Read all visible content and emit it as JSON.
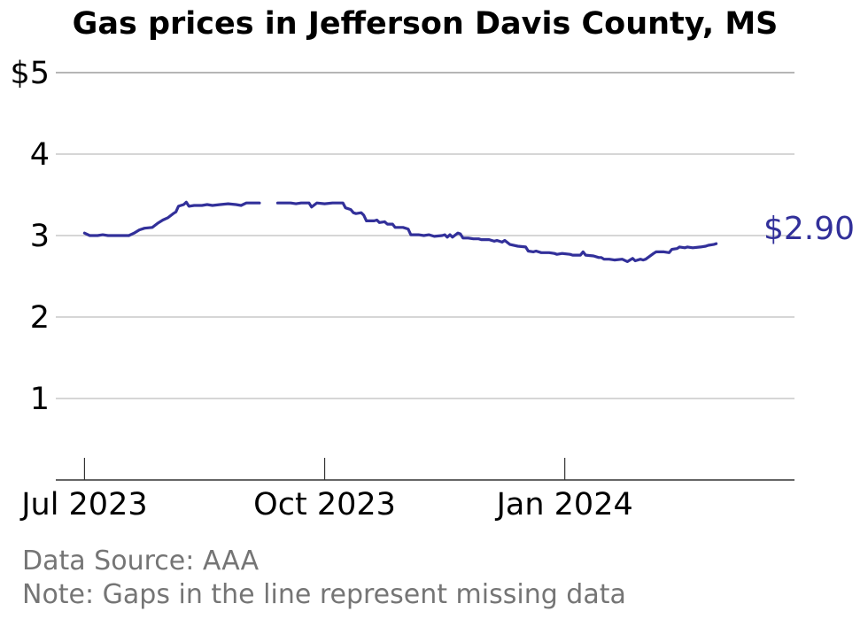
{
  "chart_data": {
    "type": "line",
    "title": "Gas prices in Jefferson Davis County, MS",
    "xlabel": "",
    "ylabel": "",
    "ylim": [
      0,
      5
    ],
    "yticks": [
      {
        "value": 1,
        "label": "1"
      },
      {
        "value": 2,
        "label": "2"
      },
      {
        "value": 3,
        "label": "3"
      },
      {
        "value": 4,
        "label": "4"
      },
      {
        "value": 5,
        "label": "$5"
      }
    ],
    "xticks": [
      {
        "date": "2023-07-01",
        "label": "Jul 2023"
      },
      {
        "date": "2023-10-01",
        "label": "Oct 2023"
      },
      {
        "date": "2024-01-01",
        "label": "Jan 2024"
      }
    ],
    "xlim": [
      "2023-06-20",
      "2024-03-29"
    ],
    "grid": true,
    "line_color": "#32309a",
    "end_label": "$2.90",
    "series": [
      {
        "segments": [
          [
            [
              "2023-07-01",
              3.03
            ],
            [
              "2023-07-03",
              3.0
            ],
            [
              "2023-07-06",
              3.0
            ],
            [
              "2023-07-08",
              3.01
            ],
            [
              "2023-07-10",
              3.0
            ],
            [
              "2023-07-15",
              3.0
            ],
            [
              "2023-07-18",
              3.0
            ],
            [
              "2023-07-20",
              3.03
            ],
            [
              "2023-07-22",
              3.07
            ],
            [
              "2023-07-24",
              3.09
            ],
            [
              "2023-07-27",
              3.1
            ],
            [
              "2023-07-29",
              3.15
            ],
            [
              "2023-07-31",
              3.19
            ],
            [
              "2023-08-02",
              3.22
            ],
            [
              "2023-08-04",
              3.27
            ],
            [
              "2023-08-05",
              3.29
            ],
            [
              "2023-08-06",
              3.36
            ],
            [
              "2023-08-08",
              3.38
            ],
            [
              "2023-08-09",
              3.41
            ],
            [
              "2023-08-10",
              3.36
            ],
            [
              "2023-08-12",
              3.37
            ],
            [
              "2023-08-15",
              3.37
            ],
            [
              "2023-08-17",
              3.38
            ],
            [
              "2023-08-19",
              3.37
            ],
            [
              "2023-08-22",
              3.38
            ],
            [
              "2023-08-25",
              3.39
            ],
            [
              "2023-08-28",
              3.38
            ],
            [
              "2023-08-30",
              3.37
            ],
            [
              "2023-09-01",
              3.4
            ],
            [
              "2023-09-04",
              3.4
            ],
            [
              "2023-09-06",
              3.4
            ]
          ],
          [
            [
              "2023-09-13",
              3.4
            ],
            [
              "2023-09-18",
              3.4
            ],
            [
              "2023-09-20",
              3.39
            ],
            [
              "2023-09-22",
              3.4
            ],
            [
              "2023-09-25",
              3.4
            ],
            [
              "2023-09-26",
              3.35
            ],
            [
              "2023-09-28",
              3.4
            ],
            [
              "2023-10-01",
              3.39
            ],
            [
              "2023-10-04",
              3.4
            ],
            [
              "2023-10-07",
              3.4
            ],
            [
              "2023-10-08",
              3.4
            ],
            [
              "2023-10-09",
              3.34
            ],
            [
              "2023-10-11",
              3.32
            ],
            [
              "2023-10-12",
              3.28
            ],
            [
              "2023-10-13",
              3.27
            ],
            [
              "2023-10-15",
              3.28
            ],
            [
              "2023-10-16",
              3.25
            ],
            [
              "2023-10-17",
              3.18
            ],
            [
              "2023-10-20",
              3.18
            ],
            [
              "2023-10-21",
              3.19
            ],
            [
              "2023-10-22",
              3.16
            ],
            [
              "2023-10-24",
              3.17
            ],
            [
              "2023-10-25",
              3.14
            ],
            [
              "2023-10-27",
              3.14
            ],
            [
              "2023-10-28",
              3.1
            ],
            [
              "2023-10-31",
              3.1
            ],
            [
              "2023-11-02",
              3.08
            ],
            [
              "2023-11-03",
              3.01
            ],
            [
              "2023-11-06",
              3.01
            ],
            [
              "2023-11-08",
              3.0
            ],
            [
              "2023-11-10",
              3.01
            ],
            [
              "2023-11-12",
              2.99
            ],
            [
              "2023-11-15",
              3.0
            ],
            [
              "2023-11-16",
              3.01
            ],
            [
              "2023-11-17",
              2.98
            ],
            [
              "2023-11-18",
              3.01
            ],
            [
              "2023-11-19",
              2.98
            ],
            [
              "2023-11-21",
              3.03
            ],
            [
              "2023-11-22",
              3.02
            ],
            [
              "2023-11-23",
              2.97
            ],
            [
              "2023-11-25",
              2.97
            ],
            [
              "2023-11-27",
              2.96
            ],
            [
              "2023-11-29",
              2.96
            ],
            [
              "2023-11-30",
              2.95
            ],
            [
              "2023-12-03",
              2.95
            ],
            [
              "2023-12-05",
              2.93
            ],
            [
              "2023-12-06",
              2.94
            ],
            [
              "2023-12-08",
              2.92
            ],
            [
              "2023-12-09",
              2.94
            ],
            [
              "2023-12-11",
              2.89
            ],
            [
              "2023-12-14",
              2.87
            ],
            [
              "2023-12-17",
              2.86
            ],
            [
              "2023-12-18",
              2.81
            ],
            [
              "2023-12-20",
              2.8
            ],
            [
              "2023-12-21",
              2.81
            ],
            [
              "2023-12-23",
              2.79
            ],
            [
              "2023-12-26",
              2.79
            ],
            [
              "2023-12-28",
              2.78
            ],
            [
              "2023-12-29",
              2.77
            ],
            [
              "2023-12-31",
              2.78
            ],
            [
              "2024-01-03",
              2.77
            ],
            [
              "2024-01-04",
              2.76
            ],
            [
              "2024-01-07",
              2.76
            ],
            [
              "2024-01-08",
              2.8
            ],
            [
              "2024-01-09",
              2.76
            ],
            [
              "2024-01-12",
              2.75
            ],
            [
              "2024-01-14",
              2.73
            ],
            [
              "2024-01-15",
              2.73
            ],
            [
              "2024-01-16",
              2.71
            ],
            [
              "2024-01-18",
              2.71
            ],
            [
              "2024-01-20",
              2.7
            ],
            [
              "2024-01-23",
              2.71
            ],
            [
              "2024-01-25",
              2.68
            ],
            [
              "2024-01-27",
              2.72
            ],
            [
              "2024-01-28",
              2.69
            ],
            [
              "2024-01-30",
              2.71
            ],
            [
              "2024-01-31",
              2.7
            ],
            [
              "2024-02-01",
              2.71
            ],
            [
              "2024-02-04",
              2.78
            ],
            [
              "2024-02-05",
              2.8
            ],
            [
              "2024-02-08",
              2.8
            ],
            [
              "2024-02-10",
              2.79
            ],
            [
              "2024-02-11",
              2.83
            ],
            [
              "2024-02-13",
              2.84
            ],
            [
              "2024-02-14",
              2.86
            ],
            [
              "2024-02-16",
              2.85
            ],
            [
              "2024-02-17",
              2.86
            ],
            [
              "2024-02-19",
              2.85
            ],
            [
              "2024-02-22",
              2.86
            ],
            [
              "2024-02-24",
              2.87
            ],
            [
              "2024-02-25",
              2.88
            ],
            [
              "2024-02-27",
              2.89
            ],
            [
              "2024-02-28",
              2.9
            ]
          ]
        ]
      }
    ]
  },
  "footer": {
    "source": "Data Source: AAA",
    "note": "Note: Gaps in the line represent missing data"
  }
}
